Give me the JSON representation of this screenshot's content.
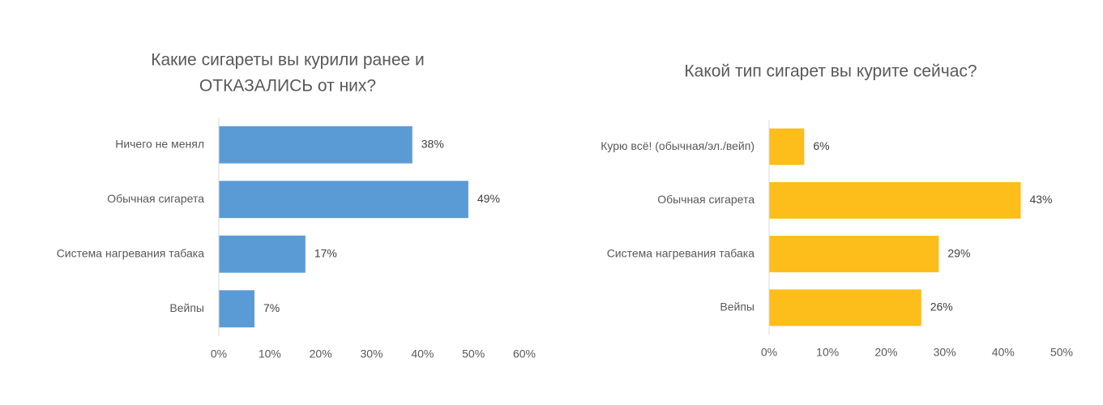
{
  "chart_data": [
    {
      "type": "bar",
      "orientation": "horizontal",
      "title": [
        "Какие сигареты вы курили ранее и",
        "ОТКАЗАЛИСЬ от них?"
      ],
      "categories": [
        "Ничего не менял",
        "Обычная сигарета",
        "Система нагревания табака",
        "Вейпы"
      ],
      "values": [
        38,
        49,
        17,
        7
      ],
      "value_labels": [
        "38%",
        "49%",
        "17%",
        "7%"
      ],
      "color": "#5b9bd5",
      "xlim": [
        0,
        60
      ],
      "xticks": [
        {
          "value": 0,
          "label": "0%"
        },
        {
          "value": 10,
          "label": "10%"
        },
        {
          "value": 20,
          "label": "20%"
        },
        {
          "value": 30,
          "label": "30%"
        },
        {
          "value": 40,
          "label": "40%"
        },
        {
          "value": 50,
          "label": "50%"
        },
        {
          "value": 60,
          "label": "60%"
        }
      ]
    },
    {
      "type": "bar",
      "orientation": "horizontal",
      "title": [
        "Какой тип сигарет вы курите сейчас?"
      ],
      "categories": [
        "Курю всё! (обычная/эл./вейп)",
        "Обычная сигарета",
        "Система нагревания табака",
        "Вейпы"
      ],
      "values": [
        6,
        43,
        29,
        26
      ],
      "value_labels": [
        "6%",
        "43%",
        "29%",
        "26%"
      ],
      "color": "#fdbd1a",
      "xlim": [
        0,
        50
      ],
      "xticks": [
        {
          "value": 0,
          "label": "0%"
        },
        {
          "value": 10,
          "label": "10%"
        },
        {
          "value": 20,
          "label": "20%"
        },
        {
          "value": 30,
          "label": "30%"
        },
        {
          "value": 40,
          "label": "40%"
        },
        {
          "value": 50,
          "label": "50%"
        }
      ]
    }
  ]
}
